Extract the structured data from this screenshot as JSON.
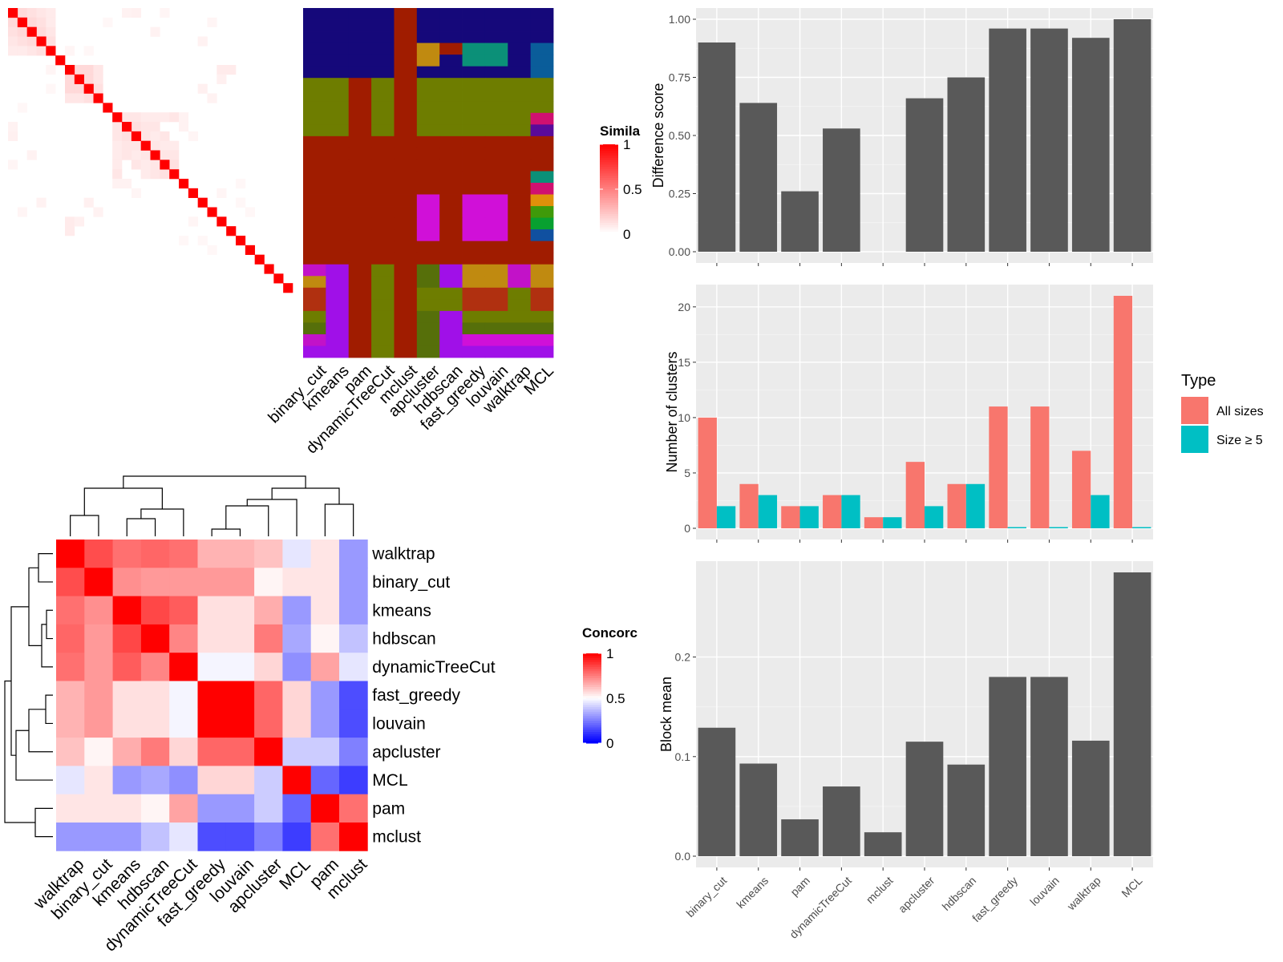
{
  "chart_data": [
    {
      "type": "heatmap",
      "name": "similarity-heatmap",
      "n": 30,
      "diag_color": "#FF0000",
      "offdiag_cells": [
        [
          0,
          1,
          0.15
        ],
        [
          0,
          2,
          0.12
        ],
        [
          0,
          3,
          0.1
        ],
        [
          0,
          4,
          0.08
        ],
        [
          1,
          2,
          0.15
        ],
        [
          1,
          3,
          0.12
        ],
        [
          1,
          4,
          0.08
        ],
        [
          2,
          3,
          0.14
        ],
        [
          2,
          4,
          0.1
        ],
        [
          3,
          4,
          0.12
        ],
        [
          0,
          12,
          0.05
        ],
        [
          0,
          13,
          0.06
        ],
        [
          2,
          15,
          0.05
        ],
        [
          6,
          7,
          0.15
        ],
        [
          6,
          8,
          0.15
        ],
        [
          6,
          9,
          0.1
        ],
        [
          7,
          8,
          0.15
        ],
        [
          7,
          9,
          0.1
        ],
        [
          8,
          9,
          0.12
        ],
        [
          11,
          12,
          0.1
        ],
        [
          11,
          13,
          0.1
        ],
        [
          11,
          14,
          0.08
        ],
        [
          11,
          15,
          0.08
        ],
        [
          11,
          16,
          0.08
        ],
        [
          11,
          17,
          0.1
        ],
        [
          12,
          13,
          0.12
        ],
        [
          12,
          14,
          0.1
        ],
        [
          12,
          15,
          0.1
        ],
        [
          13,
          14,
          0.1
        ],
        [
          13,
          15,
          0.08
        ],
        [
          13,
          16,
          0.1
        ],
        [
          14,
          15,
          0.1
        ],
        [
          14,
          16,
          0.08
        ],
        [
          14,
          17,
          0.08
        ],
        [
          15,
          16,
          0.1
        ],
        [
          15,
          17,
          0.1
        ],
        [
          16,
          17,
          0.12
        ],
        [
          11,
          18,
          0.05
        ],
        [
          12,
          18,
          0.05
        ],
        [
          13,
          19,
          0.04
        ],
        [
          3,
          20,
          0.05
        ],
        [
          1,
          21,
          0.04
        ],
        [
          6,
          22,
          0.08
        ],
        [
          6,
          23,
          0.08
        ],
        [
          7,
          22,
          0.06
        ],
        [
          19,
          22,
          0.04
        ],
        [
          8,
          20,
          0.06
        ],
        [
          9,
          21,
          0.05
        ],
        [
          0,
          16,
          0.04
        ],
        [
          1,
          10,
          0.03
        ],
        [
          4,
          6,
          0.04
        ],
        [
          4,
          8,
          0.03
        ],
        [
          20,
          24,
          0.03
        ],
        [
          21,
          25,
          0.03
        ],
        [
          18,
          24,
          0.03
        ]
      ]
    },
    {
      "type": "heatmap",
      "name": "cluster-assignment-heatmap",
      "columns": [
        "binary_cut",
        "kmeans",
        "pam",
        "dynamicTreeCut",
        "mclust",
        "apcluster",
        "hdbscan",
        "fast_greedy",
        "louvain",
        "walktrap",
        "MCL"
      ],
      "rows": 30,
      "colors": {
        "navy": "#15087a",
        "olive": "#6e7d00",
        "darkred": "#a01c00",
        "magenta": "#c212c8",
        "purple": "#a010e8",
        "gold": "#c08a10",
        "orangered": "#b03010",
        "darkgreen": "#566f0a",
        "teal": "#0b9078",
        "blue": "#0a5d9a",
        "pink": "#d01070",
        "indigo": "#5a0a9a",
        "green": "#3f9a0a",
        "limegreen": "#08a030",
        "steelblue": "#1050a0",
        "orange": "#e0900a",
        "pinkmagenta": "#e0109a",
        "brightmagenta": "#d010d8"
      },
      "row_blocks": [
        {
          "rows": [
            0,
            1,
            2,
            3,
            4,
            5
          ],
          "cols": [
            "navy",
            "navy",
            "navy",
            "navy",
            "darkred",
            "navy",
            "navy",
            "navy",
            "navy",
            "navy",
            "navy"
          ]
        },
        {
          "rows": [
            6,
            7,
            8,
            9,
            10
          ],
          "cols": [
            "olive",
            "olive",
            "darkred",
            "olive",
            "darkred",
            "olive",
            "olive",
            "olive",
            "olive",
            "olive",
            "olive"
          ]
        },
        {
          "rows": [
            11,
            12,
            13,
            14,
            15,
            16,
            17,
            18,
            19,
            20,
            21
          ],
          "cols": [
            "darkred",
            "darkred",
            "darkred",
            "darkred",
            "darkred",
            "darkred",
            "darkred",
            "darkred",
            "darkred",
            "darkred",
            "darkred"
          ]
        },
        {
          "rows": [
            22,
            23,
            24,
            25,
            26,
            27,
            28,
            29
          ],
          "cols": [
            "magenta",
            "purple",
            "darkred",
            "olive",
            "darkred",
            "darkgreen",
            "purple",
            "gold",
            "gold",
            "magenta",
            "magenta"
          ]
        }
      ],
      "overrides": [
        [
          3,
          5,
          "gold"
        ],
        [
          3,
          6,
          "darkred"
        ],
        [
          3,
          7,
          "teal"
        ],
        [
          3,
          8,
          "teal"
        ],
        [
          3,
          10,
          "blue"
        ],
        [
          4,
          5,
          "gold"
        ],
        [
          4,
          6,
          "navy"
        ],
        [
          4,
          7,
          "teal"
        ],
        [
          4,
          8,
          "teal"
        ],
        [
          4,
          10,
          "blue"
        ],
        [
          2,
          10,
          "navy"
        ],
        [
          5,
          10,
          "blue"
        ],
        [
          9,
          10,
          "pink"
        ],
        [
          10,
          10,
          "indigo"
        ],
        [
          14,
          10,
          "teal"
        ],
        [
          15,
          10,
          "pink"
        ],
        [
          16,
          10,
          "orange"
        ],
        [
          17,
          10,
          "green"
        ],
        [
          18,
          10,
          "limegreen"
        ],
        [
          19,
          10,
          "steelblue"
        ],
        [
          16,
          5,
          "brightmagenta"
        ],
        [
          17,
          5,
          "brightmagenta"
        ],
        [
          18,
          5,
          "brightmagenta"
        ],
        [
          19,
          5,
          "brightmagenta"
        ],
        [
          16,
          7,
          "brightmagenta"
        ],
        [
          16,
          8,
          "brightmagenta"
        ],
        [
          17,
          7,
          "brightmagenta"
        ],
        [
          17,
          8,
          "brightmagenta"
        ],
        [
          18,
          7,
          "brightmagenta"
        ],
        [
          18,
          8,
          "brightmagenta"
        ],
        [
          19,
          7,
          "brightmagenta"
        ],
        [
          19,
          8,
          "brightmagenta"
        ],
        [
          16,
          6,
          "darkred"
        ],
        [
          16,
          9,
          "darkred"
        ],
        [
          22,
          5,
          "darkgreen"
        ],
        [
          22,
          6,
          "purple"
        ],
        [
          22,
          7,
          "gold"
        ],
        [
          22,
          8,
          "gold"
        ],
        [
          22,
          9,
          "magenta"
        ],
        [
          22,
          10,
          "gold"
        ],
        [
          23,
          0,
          "gold"
        ],
        [
          23,
          5,
          "darkgreen"
        ],
        [
          23,
          7,
          "gold"
        ],
        [
          23,
          8,
          "gold"
        ],
        [
          23,
          9,
          "magenta"
        ],
        [
          23,
          10,
          "gold"
        ],
        [
          24,
          0,
          "orangered"
        ],
        [
          24,
          5,
          "olive"
        ],
        [
          24,
          6,
          "olive"
        ],
        [
          24,
          7,
          "orangered"
        ],
        [
          24,
          8,
          "orangered"
        ],
        [
          24,
          9,
          "olive"
        ],
        [
          24,
          10,
          "orangered"
        ],
        [
          25,
          0,
          "orangered"
        ],
        [
          25,
          5,
          "olive"
        ],
        [
          25,
          6,
          "olive"
        ],
        [
          25,
          7,
          "orangered"
        ],
        [
          25,
          8,
          "orangered"
        ],
        [
          25,
          9,
          "olive"
        ],
        [
          25,
          10,
          "orangered"
        ],
        [
          26,
          0,
          "olive"
        ],
        [
          26,
          5,
          "darkgreen"
        ],
        [
          26,
          6,
          "purple"
        ],
        [
          26,
          7,
          "olive"
        ],
        [
          26,
          8,
          "olive"
        ],
        [
          26,
          9,
          "olive"
        ],
        [
          26,
          10,
          "olive"
        ],
        [
          27,
          0,
          "darkgreen"
        ],
        [
          27,
          5,
          "darkgreen"
        ],
        [
          27,
          6,
          "purple"
        ],
        [
          27,
          7,
          "darkgreen"
        ],
        [
          27,
          8,
          "darkgreen"
        ],
        [
          27,
          9,
          "darkgreen"
        ],
        [
          27,
          10,
          "darkgreen"
        ],
        [
          28,
          0,
          "magenta"
        ],
        [
          28,
          5,
          "darkgreen"
        ],
        [
          28,
          6,
          "purple"
        ],
        [
          28,
          7,
          "brightmagenta"
        ],
        [
          28,
          8,
          "brightmagenta"
        ],
        [
          28,
          9,
          "brightmagenta"
        ],
        [
          28,
          10,
          "brightmagenta"
        ],
        [
          29,
          0,
          "purple"
        ],
        [
          29,
          5,
          "darkgreen"
        ],
        [
          29,
          6,
          "purple"
        ],
        [
          29,
          7,
          "purple"
        ],
        [
          29,
          8,
          "purple"
        ],
        [
          29,
          9,
          "purple"
        ],
        [
          29,
          10,
          "purple"
        ]
      ],
      "legend": {
        "title": "Simila",
        "ticks": [
          "1",
          "0.5",
          "0"
        ]
      }
    },
    {
      "type": "heatmap",
      "name": "concordance-heatmap",
      "labels": [
        "walktrap",
        "binary_cut",
        "kmeans",
        "hdbscan",
        "dynamicTreeCut",
        "fast_greedy",
        "louvain",
        "apcluster",
        "MCL",
        "pam",
        "mclust"
      ],
      "values": [
        [
          1.0,
          0.85,
          0.78,
          0.8,
          0.78,
          0.65,
          0.65,
          0.62,
          0.45,
          0.55,
          0.3
        ],
        [
          0.85,
          1.0,
          0.72,
          0.7,
          0.7,
          0.7,
          0.7,
          0.52,
          0.55,
          0.55,
          0.3
        ],
        [
          0.78,
          0.72,
          1.0,
          0.86,
          0.82,
          0.56,
          0.56,
          0.66,
          0.3,
          0.55,
          0.3
        ],
        [
          0.8,
          0.7,
          0.86,
          1.0,
          0.74,
          0.56,
          0.56,
          0.76,
          0.33,
          0.52,
          0.38
        ],
        [
          0.78,
          0.7,
          0.82,
          0.74,
          1.0,
          0.48,
          0.48,
          0.58,
          0.28,
          0.68,
          0.45
        ],
        [
          0.65,
          0.7,
          0.56,
          0.56,
          0.48,
          1.0,
          1.0,
          0.8,
          0.58,
          0.3,
          0.15
        ],
        [
          0.65,
          0.7,
          0.56,
          0.56,
          0.48,
          1.0,
          1.0,
          0.8,
          0.58,
          0.3,
          0.15
        ],
        [
          0.62,
          0.52,
          0.66,
          0.76,
          0.58,
          0.8,
          0.8,
          1.0,
          0.4,
          0.4,
          0.25
        ],
        [
          0.45,
          0.55,
          0.3,
          0.33,
          0.28,
          0.58,
          0.58,
          0.4,
          1.0,
          0.2,
          0.12
        ],
        [
          0.55,
          0.55,
          0.55,
          0.52,
          0.68,
          0.3,
          0.3,
          0.4,
          0.2,
          1.0,
          0.78
        ],
        [
          0.3,
          0.3,
          0.3,
          0.38,
          0.45,
          0.15,
          0.15,
          0.25,
          0.12,
          0.78,
          1.0
        ]
      ],
      "legend": {
        "title": "Concorc",
        "ticks": [
          "1",
          "0.5",
          "0"
        ]
      }
    },
    {
      "type": "bar",
      "name": "difference-score",
      "categories": [
        "binary_cut",
        "kmeans",
        "pam",
        "dynamicTreeCut",
        "mclust",
        "apcluster",
        "hdbscan",
        "fast_greedy",
        "louvain",
        "walktrap",
        "MCL"
      ],
      "values": [
        0.9,
        0.64,
        0.26,
        0.53,
        0,
        0.66,
        0.75,
        0.96,
        0.96,
        0.92,
        1.0
      ],
      "ylabel": "Difference score",
      "ylim": [
        0,
        1.0
      ],
      "yticks": [
        "0.00",
        "0.25",
        "0.50",
        "0.75",
        "1.00"
      ]
    },
    {
      "type": "bar",
      "name": "number-of-clusters",
      "categories": [
        "binary_cut",
        "kmeans",
        "pam",
        "dynamicTreeCut",
        "mclust",
        "apcluster",
        "hdbscan",
        "fast_greedy",
        "louvain",
        "walktrap",
        "MCL"
      ],
      "series": [
        {
          "name": "All sizes",
          "color": "#F8766D",
          "values": [
            10,
            4,
            2,
            3,
            1,
            6,
            4,
            11,
            11,
            7,
            21
          ]
        },
        {
          "name": "Size ≥ 5",
          "color": "#00BFC4",
          "values": [
            2,
            3,
            2,
            3,
            1,
            2,
            4,
            0,
            0,
            3,
            0
          ]
        }
      ],
      "ylabel": "Number of clusters",
      "ylim": [
        0,
        21
      ],
      "yticks": [
        "0",
        "5",
        "10",
        "15",
        "20"
      ],
      "legend_title": "Type"
    },
    {
      "type": "bar",
      "name": "block-mean",
      "categories": [
        "binary_cut",
        "kmeans",
        "pam",
        "dynamicTreeCut",
        "mclust",
        "apcluster",
        "hdbscan",
        "fast_greedy",
        "louvain",
        "walktrap",
        "MCL"
      ],
      "values": [
        0.129,
        0.093,
        0.037,
        0.07,
        0.024,
        0.115,
        0.092,
        0.18,
        0.18,
        0.116,
        0.285
      ],
      "ylabel": "Block mean",
      "ylim": [
        0,
        0.285
      ],
      "yticks": [
        "0.0",
        "0.1",
        "0.2"
      ]
    }
  ]
}
